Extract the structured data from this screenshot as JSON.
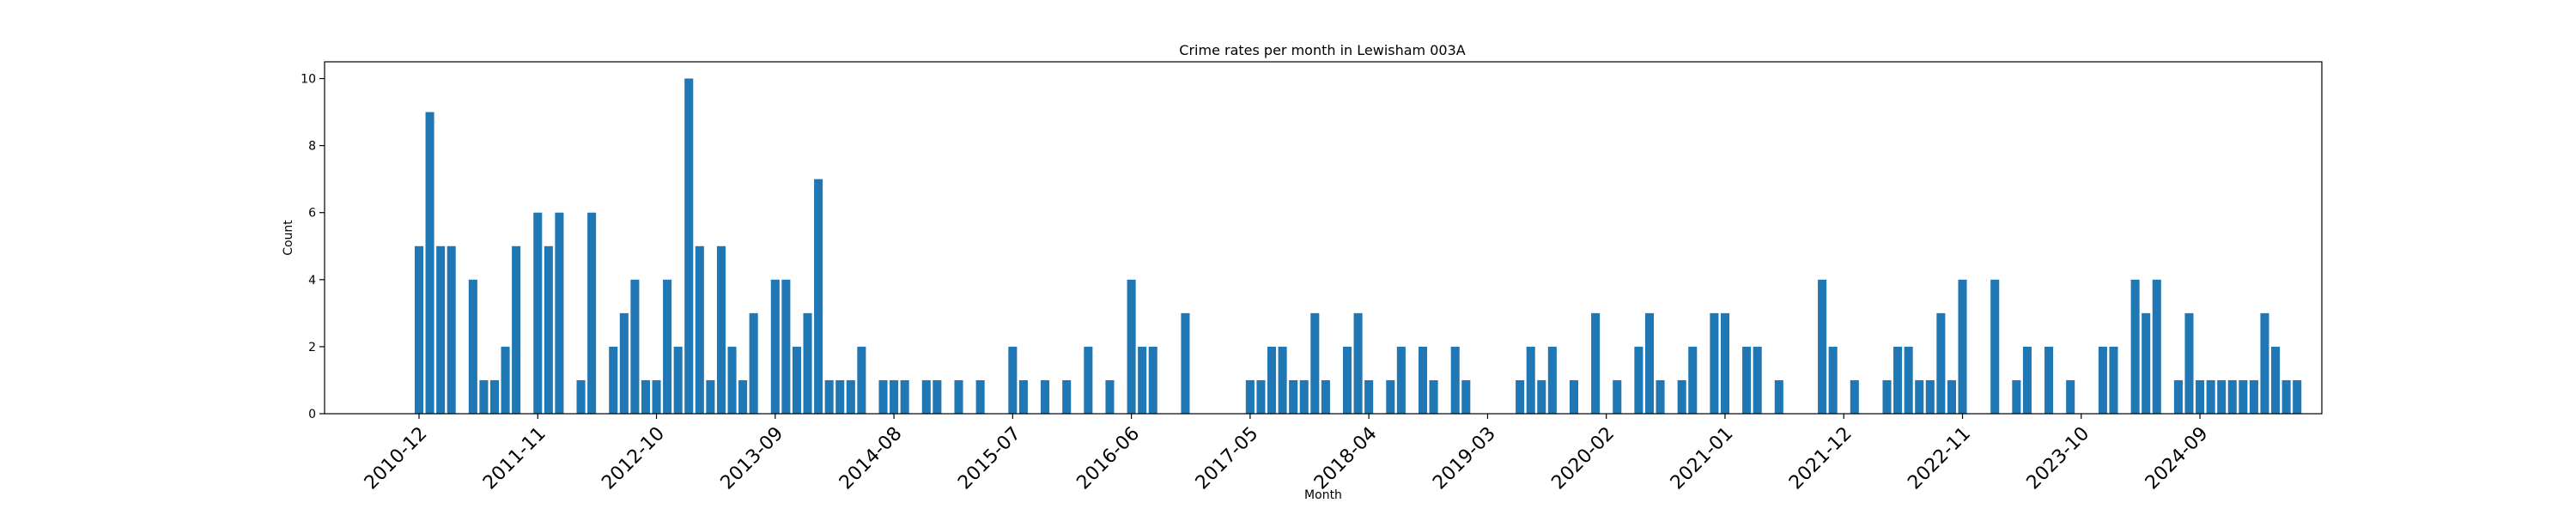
{
  "chart_data": {
    "type": "bar",
    "title": "Crime rates per month in Lewisham 003A",
    "xlabel": "Month",
    "ylabel": "Count",
    "ylim": [
      0,
      10.5
    ],
    "yticks": [
      0,
      2,
      4,
      6,
      8,
      10
    ],
    "x_tick_labels": [
      "2010-12",
      "2011-11",
      "2012-10",
      "2013-09",
      "2014-08",
      "2015-07",
      "2016-06",
      "2017-05",
      "2018-04",
      "2019-03",
      "2020-02",
      "2021-01",
      "2021-12",
      "2022-11",
      "2023-10",
      "2024-09"
    ],
    "grid": false,
    "start_month": "2010-12",
    "bar_color": "#1f77b4",
    "values": [
      5,
      9,
      5,
      5,
      0,
      4,
      1,
      1,
      2,
      5,
      0,
      6,
      5,
      6,
      0,
      1,
      6,
      0,
      2,
      3,
      4,
      1,
      1,
      4,
      2,
      10,
      5,
      1,
      5,
      2,
      1,
      3,
      0,
      4,
      4,
      2,
      3,
      7,
      1,
      1,
      1,
      2,
      0,
      1,
      1,
      1,
      0,
      1,
      1,
      0,
      1,
      0,
      1,
      0,
      0,
      2,
      1,
      0,
      1,
      0,
      1,
      0,
      2,
      0,
      1,
      0,
      4,
      2,
      2,
      0,
      0,
      3,
      0,
      0,
      0,
      0,
      0,
      1,
      1,
      2,
      2,
      1,
      1,
      3,
      1,
      0,
      2,
      3,
      1,
      0,
      1,
      2,
      0,
      2,
      1,
      0,
      2,
      1,
      0,
      0,
      0,
      0,
      1,
      2,
      1,
      2,
      0,
      1,
      0,
      3,
      0,
      1,
      0,
      2,
      3,
      1,
      0,
      1,
      2,
      0,
      3,
      3,
      0,
      2,
      2,
      0,
      1,
      0,
      0,
      0,
      4,
      2,
      0,
      1,
      0,
      0,
      1,
      2,
      2,
      1,
      1,
      3,
      1,
      4,
      0,
      0,
      4,
      0,
      1,
      2,
      0,
      2,
      0,
      1,
      0,
      0,
      2,
      2,
      0,
      4,
      3,
      4,
      0,
      1,
      3,
      1,
      1,
      1,
      1,
      1,
      1,
      3,
      2,
      1,
      1
    ]
  }
}
